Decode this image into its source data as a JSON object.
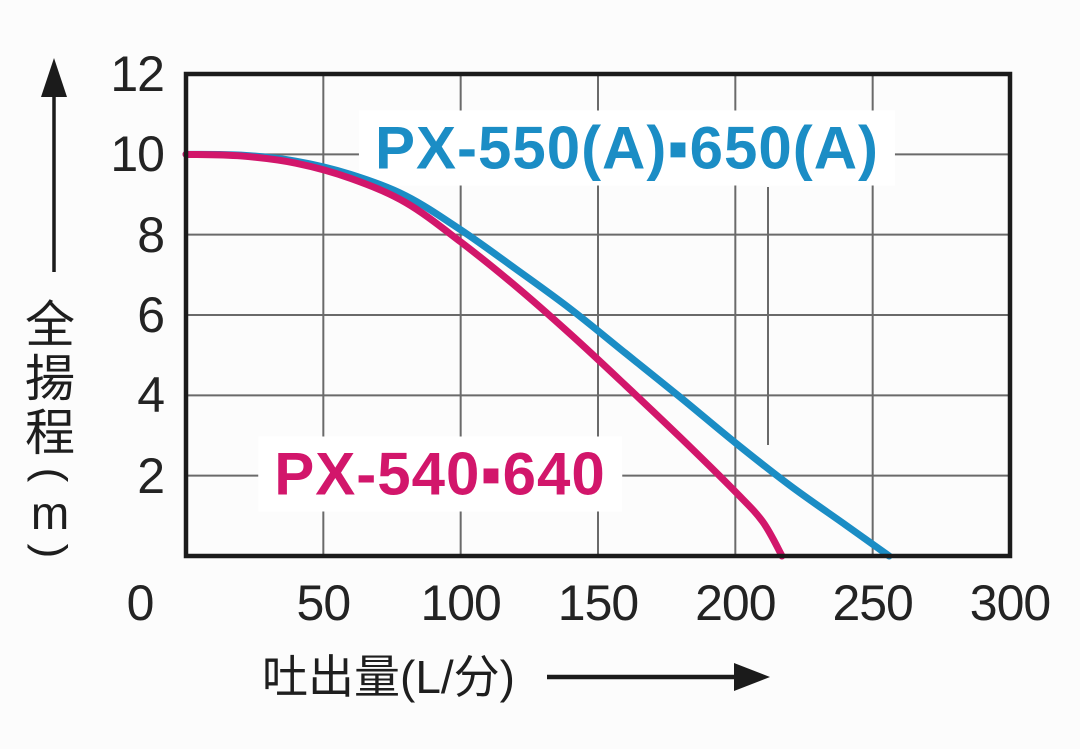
{
  "chart_data": {
    "type": "line",
    "title": "",
    "xlabel": "吐出量(L/分)",
    "ylabel": "全揚程(m)",
    "xlim": [
      0,
      300
    ],
    "ylim": [
      0,
      12
    ],
    "x_ticks": [
      0,
      50,
      100,
      150,
      200,
      250,
      300
    ],
    "y_ticks": [
      2,
      4,
      6,
      8,
      10,
      12
    ],
    "grid": true,
    "legend_position": "labels-inside-plot",
    "series": [
      {
        "name": "PX-550(A)▪650(A)",
        "color": "#1b8dc5",
        "points": [
          [
            0,
            10
          ],
          [
            20,
            9.98
          ],
          [
            40,
            9.83
          ],
          [
            60,
            9.5
          ],
          [
            80,
            8.97
          ],
          [
            100,
            8.12
          ],
          [
            120,
            7.15
          ],
          [
            140,
            6.15
          ],
          [
            160,
            5.05
          ],
          [
            180,
            3.95
          ],
          [
            200,
            2.82
          ],
          [
            220,
            1.75
          ],
          [
            240,
            0.78
          ],
          [
            256,
            0
          ]
        ]
      },
      {
        "name": "PX-540▪640",
        "color": "#d2166b",
        "points": [
          [
            0,
            10
          ],
          [
            20,
            9.96
          ],
          [
            40,
            9.78
          ],
          [
            60,
            9.4
          ],
          [
            80,
            8.8
          ],
          [
            100,
            7.82
          ],
          [
            120,
            6.72
          ],
          [
            140,
            5.52
          ],
          [
            160,
            4.25
          ],
          [
            180,
            2.95
          ],
          [
            200,
            1.6
          ],
          [
            210,
            0.85
          ],
          [
            217,
            0
          ]
        ]
      }
    ]
  },
  "labels": {
    "series_blue": "PX-550(A)▪650(A)",
    "series_pink": "PX-540▪640",
    "x_axis_title": "吐出量(L/分)",
    "y_axis_title": "全揚程(m)"
  },
  "colors": {
    "blue": "#1b8dc5",
    "pink": "#d2166b",
    "grid": "#6a6a6a",
    "axis": "#1b1b1b",
    "text": "#222222",
    "background": "#fcfcfc"
  }
}
